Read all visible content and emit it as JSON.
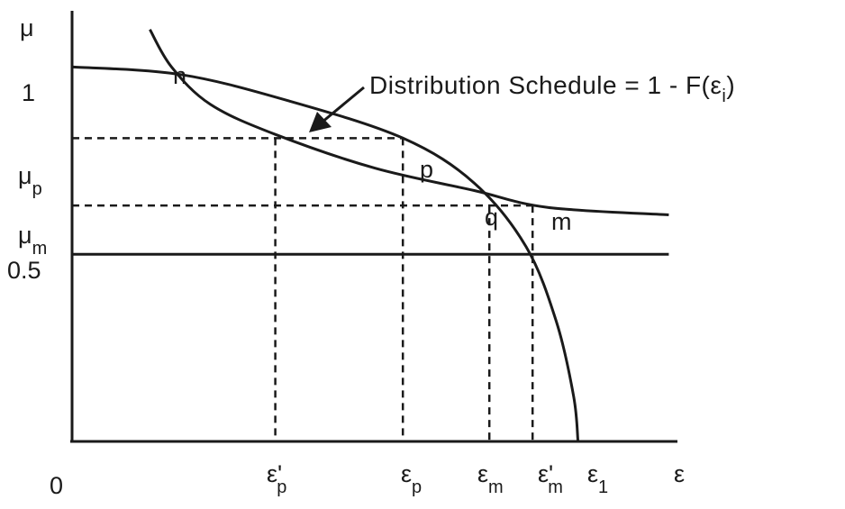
{
  "chart_data": {
    "type": "line",
    "title": "",
    "xlabel": "ε",
    "ylabel": "μ",
    "origin_label": "0",
    "y_ticks": [
      {
        "id": "one",
        "label": "1",
        "sub": "",
        "value": 1.0
      },
      {
        "id": "mu-p",
        "label": "μ",
        "sub": "p",
        "value": 0.81
      },
      {
        "id": "mu-m",
        "label": "μ",
        "sub": "m",
        "value": 0.63
      },
      {
        "id": "half",
        "label": "0.5",
        "sub": "",
        "value": 0.5
      }
    ],
    "x_ticks": [
      {
        "id": "eps-p-prime",
        "label": "ε'",
        "sub": "p",
        "value": 4.7
      },
      {
        "id": "eps-p",
        "label": "ε",
        "sub": "p",
        "value": 7.65
      },
      {
        "id": "eps-m",
        "label": "ε",
        "sub": "m",
        "value": 9.65
      },
      {
        "id": "eps-m-prime",
        "label": "ε'",
        "sub": "m",
        "value": 10.65
      },
      {
        "id": "eps-1",
        "label": "ε",
        "sub": "1",
        "value": 11.7
      }
    ],
    "series": [
      {
        "name": "Distribution Schedule = 1 - F(εi)",
        "points": [
          [
            0,
            1.0
          ],
          [
            2.5,
            0.98
          ],
          [
            5,
            0.91
          ],
          [
            7.65,
            0.81
          ],
          [
            9.3,
            0.69
          ],
          [
            10.5,
            0.52
          ],
          [
            11.2,
            0.32
          ],
          [
            11.6,
            0.12
          ],
          [
            11.7,
            0.0
          ]
        ]
      },
      {
        "name": "",
        "points": [
          [
            1.8,
            1.1
          ],
          [
            2.3,
            1.0
          ],
          [
            3.2,
            0.9
          ],
          [
            4.7,
            0.82
          ],
          [
            7.0,
            0.73
          ],
          [
            9.3,
            0.67
          ],
          [
            11.0,
            0.625
          ],
          [
            13.8,
            0.605
          ]
        ]
      },
      {
        "name": "",
        "points": [
          [
            0,
            0.5
          ],
          [
            13.8,
            0.5
          ]
        ]
      }
    ],
    "point_labels": [
      {
        "id": "n",
        "text": "n",
        "x": 2.3,
        "y": 1.0
      },
      {
        "id": "p",
        "text": "p",
        "x": 7.65,
        "y": 0.81
      },
      {
        "id": "q",
        "text": "q",
        "x": 9.3,
        "y": 0.67
      },
      {
        "id": "m",
        "text": "m",
        "x": 10.65,
        "y": 0.63
      }
    ],
    "annotation": {
      "prefix": "Distribution Schedule = 1 - F(",
      "var": "ε",
      "sub": "i",
      "suffix": ")"
    },
    "xlim": [
      0,
      14
    ],
    "ylim": [
      0,
      1.15
    ],
    "grid": false,
    "legend": "none"
  }
}
